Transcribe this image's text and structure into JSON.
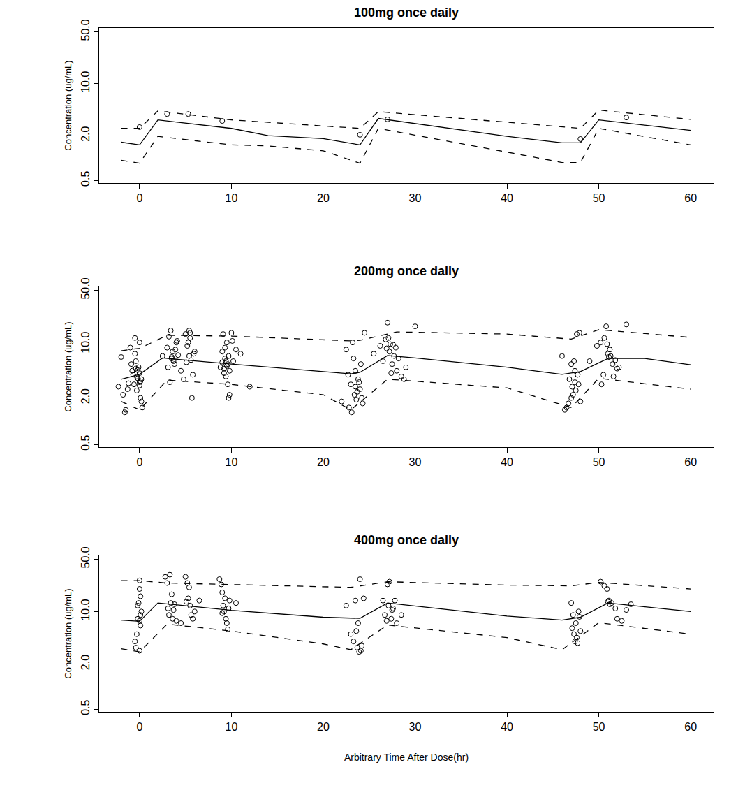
{
  "chart_data": [
    {
      "type": "line",
      "title": "100mg once daily",
      "y_label": "Concentration (ug/mL)",
      "xlim": [
        -4.4,
        62.5
      ],
      "xticks": [
        0,
        10,
        20,
        30,
        40,
        50,
        60
      ],
      "ylim": [
        0.46,
        56
      ],
      "log": "y",
      "grid": false,
      "yticks": [
        0.5,
        {
          "value": 2,
          "label": "2.0"
        },
        {
          "value": 10,
          "label": "10.0"
        },
        {
          "value": 50,
          "label": "50.0"
        }
      ],
      "series": [
        {
          "type": "scatter",
          "marker": "circle-open",
          "color": "#000000",
          "x": [
            0,
            3,
            5.3,
            9,
            24,
            27,
            48,
            53
          ],
          "values": [
            2.6,
            3.9,
            3.9,
            3.15,
            2.05,
            3.3,
            1.8,
            3.5
          ]
        },
        {
          "type": "line",
          "line_style": "solid",
          "color": "#000000",
          "x": [
            -2,
            0,
            2,
            10,
            14,
            20,
            24,
            26,
            40,
            46,
            48,
            50,
            60
          ],
          "values": [
            1.63,
            1.5,
            3.25,
            2.5,
            2.0,
            1.82,
            1.5,
            3.4,
            1.95,
            1.6,
            1.6,
            3.25,
            2.35
          ]
        },
        {
          "type": "line",
          "line_style": "dash",
          "color": "#000000",
          "x": [
            -2,
            0,
            2,
            10,
            24,
            26,
            48,
            50,
            60
          ],
          "values": [
            2.5,
            2.5,
            4.3,
            3.25,
            2.5,
            4.2,
            2.5,
            4.4,
            3.3
          ]
        },
        {
          "type": "line",
          "line_style": "dash",
          "color": "#000000",
          "x": [
            -2,
            0,
            2,
            10,
            14,
            20,
            24,
            26,
            40,
            46,
            48,
            50,
            60
          ],
          "values": [
            0.93,
            0.85,
            1.95,
            1.5,
            1.45,
            1.25,
            0.85,
            2.5,
            1.2,
            0.87,
            0.87,
            2.5,
            1.5
          ]
        }
      ]
    },
    {
      "type": "line",
      "title": "200mg once daily",
      "y_label": "Concentration (ug/mL)",
      "xlim": [
        -4.4,
        62.5
      ],
      "xticks": [
        0,
        10,
        20,
        30,
        40,
        50,
        60
      ],
      "ylim": [
        0.46,
        56
      ],
      "log": "y",
      "grid": false,
      "yticks": [
        0.5,
        {
          "value": 2,
          "label": "2.0"
        },
        {
          "value": 10,
          "label": "10.0"
        },
        {
          "value": 50,
          "label": "50.0"
        }
      ],
      "series": [
        {
          "type": "scatter",
          "marker": "circle-open",
          "color": "#000000",
          "x": [
            -2.3,
            -2.0,
            -1.8,
            -1.5,
            -1.2,
            -1.0,
            -0.8,
            -0.6,
            -0.5,
            -0.4,
            -0.3,
            -0.2,
            -0.1,
            0,
            0,
            0.1,
            0.1,
            0.2,
            0.3,
            -0.7,
            -0.3,
            0,
            -1.6,
            -0.9,
            -0.5,
            0.2,
            -0.2,
            0.0,
            -1.3,
            -0.4,
            2.5,
            3.0,
            3.2,
            3.4,
            3.5,
            3.6,
            3.8,
            4.0,
            4.2,
            4.5,
            3.3,
            3.7,
            4.1,
            3.9,
            3.1,
            5.0,
            5.2,
            5.4,
            5.5,
            5.6,
            5.8,
            6.0,
            5.3,
            5.7,
            5.1,
            5.5,
            5.9,
            4.8,
            3.5,
            5.4,
            8.8,
            9.0,
            9.1,
            9.2,
            9.3,
            9.4,
            9.5,
            9.6,
            9.7,
            9.8,
            10.0,
            10.2,
            10.5,
            9.2,
            9.4,
            9.6,
            9.0,
            9.8,
            11.0,
            12.0,
            9.3,
            9.7,
            9.5,
            10.1,
            22.0,
            22.5,
            22.8,
            23.0,
            23.2,
            23.4,
            23.5,
            23.6,
            23.8,
            24.0,
            24.1,
            24.2,
            24.5,
            23.1,
            23.3,
            23.7,
            23.9,
            22.7,
            24.3,
            23.5,
            25.5,
            26.2,
            26.5,
            26.8,
            27.0,
            27.2,
            27.3,
            27.5,
            27.7,
            27.9,
            28.0,
            28.2,
            28.5,
            28.8,
            27.1,
            27.4,
            26.9,
            27.6,
            30.0,
            29.0,
            46.0,
            46.5,
            46.8,
            47.0,
            47.2,
            47.4,
            47.5,
            47.6,
            47.8,
            48.0,
            47.3,
            47.1,
            47.7,
            46.7,
            47.9,
            47.4,
            47.0,
            46.3,
            49.0,
            49.8,
            50.2,
            50.5,
            50.8,
            51.0,
            51.2,
            51.5,
            51.8,
            52.0,
            50.9,
            51.3,
            51.6,
            50.3,
            53.0,
            50.6,
            51.1,
            52.2
          ],
          "values": [
            2.8,
            6.8,
            2.2,
            1.4,
            3.1,
            9.0,
            4.5,
            3.0,
            12.0,
            4.8,
            2.5,
            3.6,
            5.0,
            4.2,
            10.5,
            3.3,
            2.0,
            1.8,
            1.5,
            4.0,
            3.8,
            2.9,
            1.3,
            5.5,
            7.5,
            3.5,
            4.6,
            3.2,
            2.6,
            6.0,
            7.0,
            9.0,
            12.5,
            15.0,
            6.5,
            8.0,
            5.5,
            10.5,
            7.2,
            4.5,
            3.2,
            6.0,
            11.0,
            8.5,
            5.0,
            13.5,
            9.5,
            7.0,
            14.0,
            6.2,
            4.0,
            8.0,
            10.5,
            2.0,
            5.8,
            12.0,
            7.5,
            3.5,
            6.8,
            15.0,
            5.0,
            8.0,
            13.5,
            4.2,
            6.5,
            3.8,
            10.5,
            5.5,
            7.0,
            2.2,
            14.0,
            6.0,
            8.5,
            4.8,
            6.0,
            3.0,
            5.8,
            4.5,
            7.5,
            2.8,
            9.0,
            2.0,
            5.2,
            11.0,
            1.8,
            8.5,
            1.5,
            3.0,
            10.5,
            2.2,
            4.5,
            1.9,
            3.5,
            2.6,
            5.5,
            2.0,
            14.0,
            1.3,
            6.5,
            2.4,
            3.2,
            4.0,
            1.7,
            2.8,
            7.5,
            9.5,
            6.0,
            11.5,
            19.0,
            8.0,
            10.0,
            5.5,
            7.0,
            9.0,
            4.5,
            6.5,
            3.8,
            3.5,
            12.0,
            4.2,
            8.8,
            9.8,
            17.0,
            5.0,
            7.0,
            1.5,
            3.5,
            5.5,
            2.2,
            4.5,
            2.5,
            13.5,
            3.0,
            1.8,
            6.0,
            2.8,
            4.0,
            1.7,
            14.0,
            3.2,
            2.0,
            1.4,
            6.0,
            9.5,
            10.5,
            4.0,
            17.0,
            7.5,
            8.5,
            5.5,
            6.2,
            4.8,
            10.0,
            7.0,
            3.8,
            3.0,
            18.0,
            12.0,
            6.8,
            5.0
          ]
        },
        {
          "type": "line",
          "line_style": "solid",
          "color": "#000000",
          "x": [
            -2,
            0,
            2.5,
            5,
            10,
            20,
            23,
            24,
            27,
            30,
            40,
            46,
            48,
            51,
            55,
            60
          ],
          "values": [
            3.5,
            4.05,
            6.6,
            6.2,
            5.5,
            4.4,
            4.1,
            4.3,
            7.1,
            6.6,
            5.0,
            4.05,
            4.4,
            6.5,
            6.5,
            5.4
          ]
        },
        {
          "type": "line",
          "line_style": "dash",
          "color": "#000000",
          "x": [
            -2,
            0,
            3,
            10,
            23,
            24,
            28,
            40,
            47,
            50,
            60
          ],
          "values": [
            8.2,
            8.8,
            13,
            12.7,
            11,
            11.2,
            14.4,
            13.5,
            11.6,
            15.4,
            12.2
          ]
        },
        {
          "type": "line",
          "line_style": "dash",
          "color": "#000000",
          "x": [
            -2,
            0,
            3,
            10,
            20,
            23,
            27,
            40,
            47,
            50,
            60
          ],
          "values": [
            1.8,
            1.4,
            3.4,
            3.0,
            2.2,
            1.4,
            3.5,
            2.7,
            1.5,
            3.6,
            2.6
          ]
        }
      ]
    },
    {
      "type": "line",
      "title": "400mg once daily",
      "y_label": "Concentration (ug/mL)",
      "x_label": "Arbitrary Time After Dose(hr)",
      "xlim": [
        -4.4,
        62.5
      ],
      "xticks": [
        0,
        10,
        20,
        30,
        40,
        50,
        60
      ],
      "ylim": [
        0.46,
        56
      ],
      "log": "y",
      "grid": false,
      "yticks": [
        0.5,
        {
          "value": 2,
          "label": "2.0"
        },
        {
          "value": 10,
          "label": "10.0"
        },
        {
          "value": 50,
          "label": "50.0"
        }
      ],
      "series": [
        {
          "type": "scatter",
          "marker": "circle-open",
          "color": "#000000",
          "x": [
            -0.5,
            -0.3,
            -0.2,
            -0.1,
            0,
            0,
            0.1,
            0.2,
            -0.4,
            0,
            0.1,
            -0.2,
            0,
            0.1,
            2.8,
            3.0,
            3.2,
            3.4,
            3.5,
            3.6,
            3.1,
            3.3,
            3.8,
            4.0,
            5.0,
            5.2,
            5.3,
            5.5,
            5.6,
            5.8,
            6.0,
            5.4,
            5.1,
            3.7,
            4.5,
            6.5,
            8.7,
            8.9,
            9.0,
            9.1,
            9.2,
            9.4,
            9.5,
            9.6,
            9.8,
            9.0,
            9.3,
            10.5,
            9.7,
            22.5,
            23.0,
            23.3,
            23.5,
            23.7,
            23.8,
            24.0,
            24.1,
            24.2,
            24.4,
            23.6,
            23.9,
            26.5,
            26.7,
            27.0,
            27.2,
            27.4,
            27.6,
            27.8,
            28.0,
            28.5,
            27.1,
            27.5,
            26.9,
            47.0,
            47.2,
            47.4,
            47.5,
            47.6,
            47.8,
            48.0,
            47.3,
            47.7,
            47.1,
            47.9,
            50.2,
            50.6,
            51.0,
            51.2,
            51.4,
            51.8,
            52.0,
            52.5,
            53.0,
            53.5,
            51.1,
            50.9
          ],
          "values": [
            4.0,
            5.0,
            8.0,
            13.0,
            20.0,
            26.0,
            16.0,
            10.0,
            3.3,
            3.0,
            6.5,
            12.0,
            7.5,
            9.0,
            29.0,
            24.0,
            9.0,
            13.0,
            17.0,
            8.0,
            11.0,
            31.0,
            12.5,
            7.5,
            29.0,
            24.0,
            15.0,
            12.0,
            9.0,
            8.0,
            10.0,
            21.0,
            13.5,
            10.5,
            7.0,
            14.0,
            27.0,
            23.0,
            18.0,
            12.0,
            10.0,
            8.0,
            7.0,
            5.8,
            14.0,
            9.5,
            15.0,
            13.0,
            11.0,
            12.0,
            5.0,
            4.0,
            14.0,
            3.3,
            7.0,
            27.0,
            3.0,
            3.5,
            15.0,
            5.5,
            2.9,
            14.0,
            9.0,
            23.0,
            25.0,
            8.0,
            11.0,
            14.0,
            7.0,
            9.0,
            12.0,
            10.5,
            7.5,
            13.0,
            9.0,
            4.0,
            7.0,
            4.5,
            10.0,
            5.5,
            5.0,
            3.8,
            6.0,
            8.5,
            25.0,
            22.0,
            13.5,
            12.5,
            13.0,
            11.0,
            8.0,
            7.5,
            10.5,
            12.5,
            14.0,
            20.0
          ]
        },
        {
          "type": "line",
          "line_style": "solid",
          "color": "#000000",
          "x": [
            -2,
            0,
            2,
            5,
            10,
            20,
            24,
            27,
            40,
            46,
            48,
            51,
            60
          ],
          "values": [
            7.7,
            7.4,
            13,
            11.9,
            10.4,
            8.4,
            8.1,
            13,
            8.7,
            7.7,
            8.4,
            13,
            10
          ]
        },
        {
          "type": "line",
          "line_style": "dash",
          "color": "#000000",
          "x": [
            -2,
            0,
            3,
            10,
            23,
            27,
            40,
            47,
            50,
            60
          ],
          "values": [
            25.8,
            25.8,
            24,
            23,
            21,
            25,
            22.5,
            22,
            24.5,
            20
          ]
        },
        {
          "type": "line",
          "line_style": "dash",
          "color": "#000000",
          "x": [
            -2,
            0,
            3,
            10,
            20,
            23,
            27,
            40,
            46,
            50,
            60
          ],
          "values": [
            3.2,
            2.9,
            6.8,
            5.5,
            3.7,
            3.1,
            6.6,
            4.5,
            3.1,
            7.1,
            5.0
          ]
        }
      ]
    }
  ]
}
